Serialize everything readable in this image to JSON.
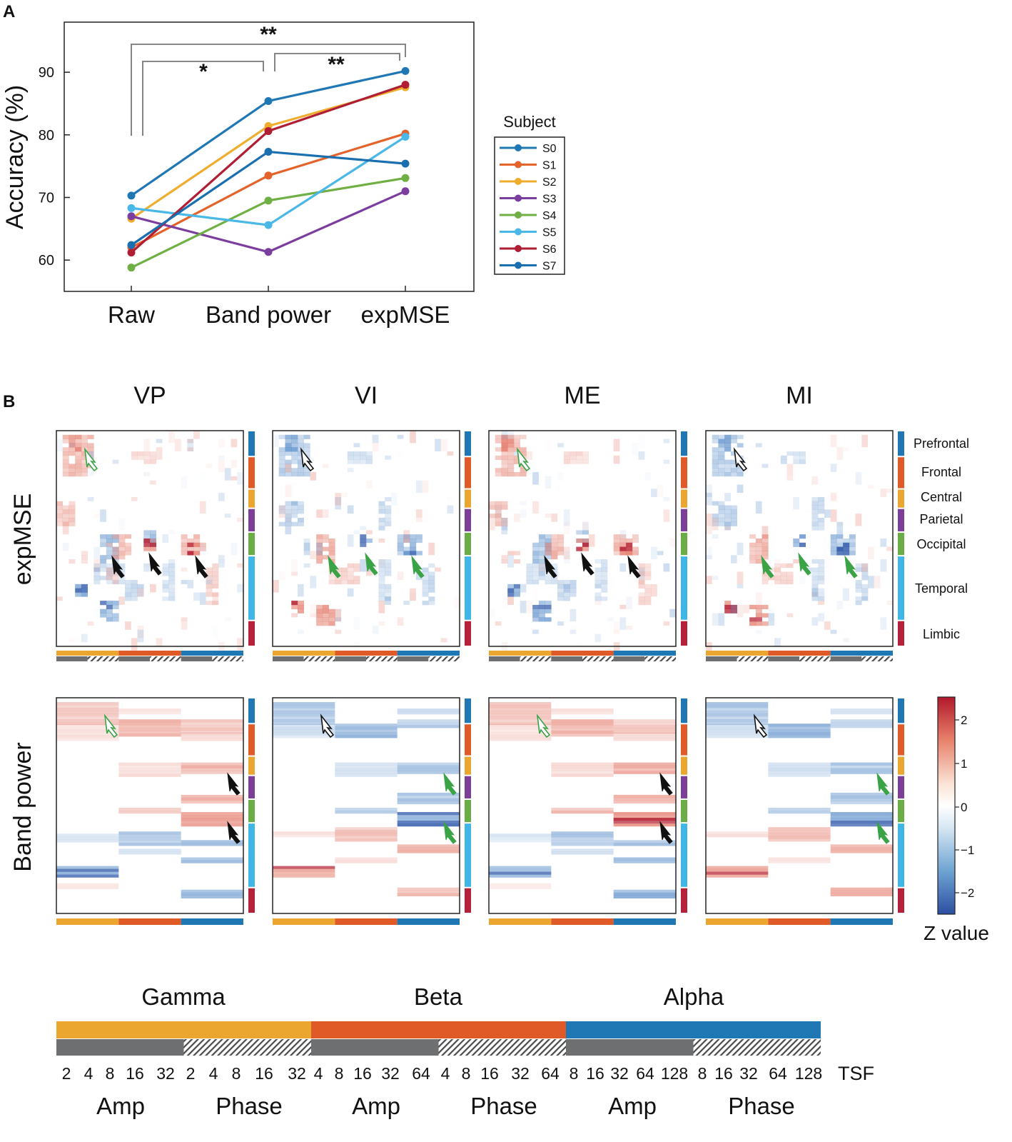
{
  "panel_a": {
    "label": "A",
    "chart_data": {
      "type": "line",
      "title": "",
      "xlabel": "",
      "ylabel": "Accuracy (%)",
      "categories": [
        "Raw",
        "Band power",
        "expMSE"
      ],
      "yticks": [
        60,
        70,
        80,
        90
      ],
      "ylim": [
        55,
        98
      ],
      "grid": false,
      "legend_title": "Subject",
      "legend_position": "right",
      "series": [
        {
          "name": "S0",
          "color": "#1f77b4",
          "values": [
            70.3,
            85.4,
            90.2
          ]
        },
        {
          "name": "S1",
          "color": "#e3632b",
          "values": [
            62.0,
            73.5,
            80.2
          ]
        },
        {
          "name": "S2",
          "color": "#efad2e",
          "values": [
            66.6,
            81.4,
            87.6
          ]
        },
        {
          "name": "S3",
          "color": "#7c3e9e",
          "values": [
            67.0,
            61.3,
            71.0
          ]
        },
        {
          "name": "S4",
          "color": "#6faf44",
          "values": [
            58.8,
            69.5,
            73.1
          ]
        },
        {
          "name": "S5",
          "color": "#4ab8e6",
          "values": [
            68.3,
            65.6,
            79.7
          ]
        },
        {
          "name": "S6",
          "color": "#b01e34",
          "values": [
            61.2,
            80.6,
            88.0
          ]
        },
        {
          "name": "S7",
          "color": "#1a6fb0",
          "values": [
            62.4,
            77.3,
            75.4
          ]
        }
      ],
      "significance": [
        {
          "from": "Raw",
          "to": "Band power",
          "label": "*"
        },
        {
          "from": "Band power",
          "to": "expMSE",
          "label": "**"
        },
        {
          "from": "Raw",
          "to": "expMSE",
          "label": "**"
        }
      ]
    }
  },
  "panel_b": {
    "label": "B",
    "conditions": [
      "VP",
      "VI",
      "ME",
      "MI"
    ],
    "row_labels": [
      "expMSE",
      "Band power"
    ],
    "regions": [
      {
        "name": "Prefrontal",
        "color": "#1f77b4"
      },
      {
        "name": "Frontal",
        "color": "#e05a28"
      },
      {
        "name": "Central",
        "color": "#eaa62e"
      },
      {
        "name": "Parietal",
        "color": "#7b3f98"
      },
      {
        "name": "Occipital",
        "color": "#6aac45"
      },
      {
        "name": "Temporal",
        "color": "#3fb6e6"
      },
      {
        "name": "Limbic",
        "color": "#b5213a"
      }
    ],
    "colorbar": {
      "ticks": [
        "2",
        "1",
        "0",
        "−1",
        "−2"
      ],
      "label": "Z value"
    }
  },
  "legend_bar": {
    "bands": [
      {
        "name": "Gamma",
        "color": "#eaa62e"
      },
      {
        "name": "Beta",
        "color": "#e05a28"
      },
      {
        "name": "Alpha",
        "color": "#1f77b4"
      }
    ],
    "tsf_label": "TSF",
    "tsf_numbers": [
      "2",
      "4",
      "8",
      "16",
      "32",
      "2",
      "4",
      "8",
      "16",
      "32",
      "4",
      "8",
      "16",
      "32",
      "64",
      "4",
      "8",
      "16",
      "32",
      "64",
      "8",
      "16",
      "32",
      "64",
      "128",
      "8",
      "16",
      "32",
      "64",
      "128"
    ],
    "types": [
      "Amp",
      "Phase",
      "Amp",
      "Phase",
      "Amp",
      "Phase"
    ]
  },
  "colors": {
    "grey": "#6d6f71",
    "red": "#b2182b",
    "blue": "#2c55a8",
    "arrow_black": "#111111",
    "arrow_green": "#3aa346"
  }
}
